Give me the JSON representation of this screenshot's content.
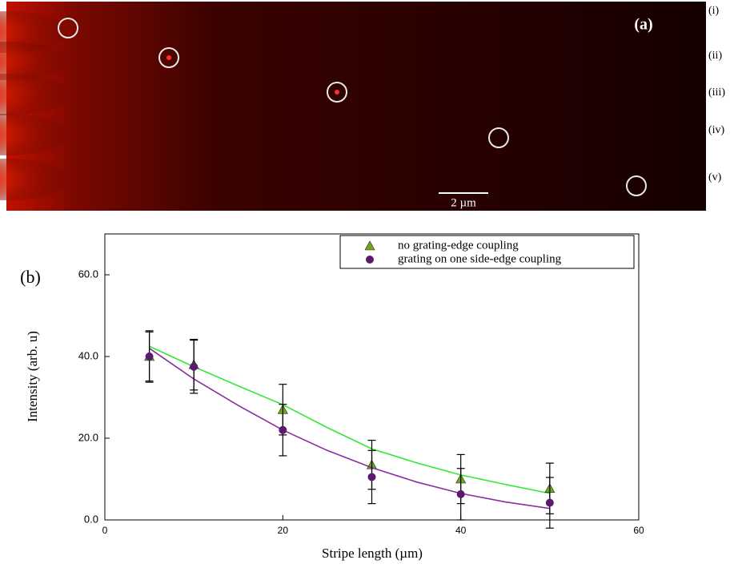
{
  "panel_a": {
    "label": "(a)",
    "row_labels": [
      "(i)",
      "(ii)",
      "(iii)",
      "(iv)",
      "(v)"
    ],
    "scale_bar": "2 µm"
  },
  "chart_data": {
    "type": "scatter",
    "panel_label": "(b)",
    "x_label": "Stripe length (µm)",
    "y_label": "Intensity (arb. u)",
    "x": [
      5,
      10,
      20,
      30,
      40,
      50
    ],
    "fit_x": [
      5,
      10,
      15,
      20,
      25,
      30,
      35,
      40,
      45,
      50
    ],
    "series": [
      {
        "name": "no grating-edge coupling",
        "color": "#6fa81c",
        "marker": "triangle",
        "line_color": "#33e833",
        "values": [
          40,
          38,
          27,
          13.5,
          10,
          7.7
        ],
        "errors": [
          6.3,
          6.2,
          6.2,
          6,
          6,
          6.2
        ],
        "fit": [
          42.5,
          37.5,
          32.8,
          28.2,
          22.6,
          17.4,
          14,
          11,
          8.7,
          6.5
        ]
      },
      {
        "name": "grating on one side-edge coupling",
        "color": "#5a1a6e",
        "marker": "circle",
        "line_color": "#8a2ea0",
        "values": [
          40,
          37.5,
          22,
          10.5,
          6.3,
          4.2
        ],
        "errors": [
          6,
          6.5,
          6.3,
          6.5,
          6.3,
          6.2
        ],
        "fit": [
          42,
          34.5,
          28,
          22,
          17,
          12.8,
          9.3,
          6.5,
          4.4,
          2.8
        ]
      }
    ],
    "xlim": [
      0,
      60
    ],
    "xticks": [
      0,
      20,
      40,
      60
    ],
    "ylim": [
      0,
      70
    ],
    "yticks": [
      {
        "value": 0,
        "label": "0.0"
      },
      {
        "value": 20,
        "label": "20.0"
      },
      {
        "value": 40,
        "label": "40.0"
      },
      {
        "value": 60,
        "label": "60.0"
      }
    ],
    "legend": "upper-right"
  }
}
